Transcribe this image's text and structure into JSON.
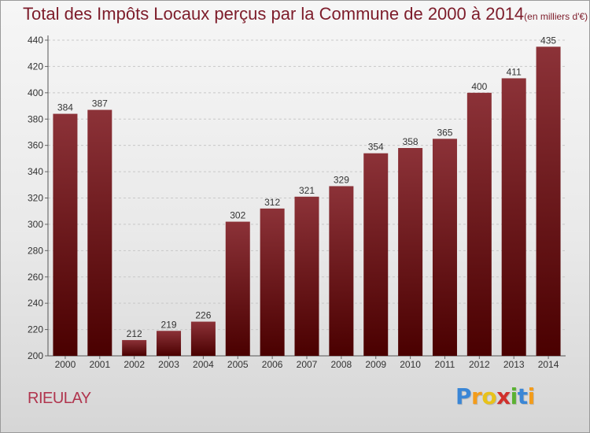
{
  "chart_data": {
    "type": "bar",
    "title": "Total des Impôts Locaux perçus par la Commune de 2000 à 2014",
    "unit": "(en milliers d'€)",
    "categories": [
      "2000",
      "2001",
      "2002",
      "2003",
      "2004",
      "2005",
      "2006",
      "2007",
      "2008",
      "2009",
      "2010",
      "2011",
      "2012",
      "2013",
      "2014"
    ],
    "values": [
      384,
      387,
      212,
      219,
      226,
      302,
      312,
      321,
      329,
      354,
      358,
      365,
      400,
      411,
      435
    ],
    "yticks": [
      200,
      220,
      240,
      260,
      280,
      300,
      320,
      340,
      360,
      380,
      400,
      420,
      440
    ],
    "ylim": [
      200,
      440
    ],
    "xlabel": "",
    "ylabel": "",
    "grid": true,
    "legend": "none"
  },
  "place_name": "RIEULAY",
  "brand": {
    "letters": [
      "P",
      "r",
      "o",
      "x",
      "i",
      "t",
      "i"
    ],
    "colors": [
      "#3a86d6",
      "#f39c1b",
      "#e8c21a",
      "#d0302c",
      "#5bb233",
      "#3a86d6",
      "#f39c1b"
    ]
  },
  "colors": {
    "bar_top": "#8c3238",
    "bar_bottom": "#4a0000",
    "title": "#7d1c2a",
    "place": "#b0354e"
  }
}
